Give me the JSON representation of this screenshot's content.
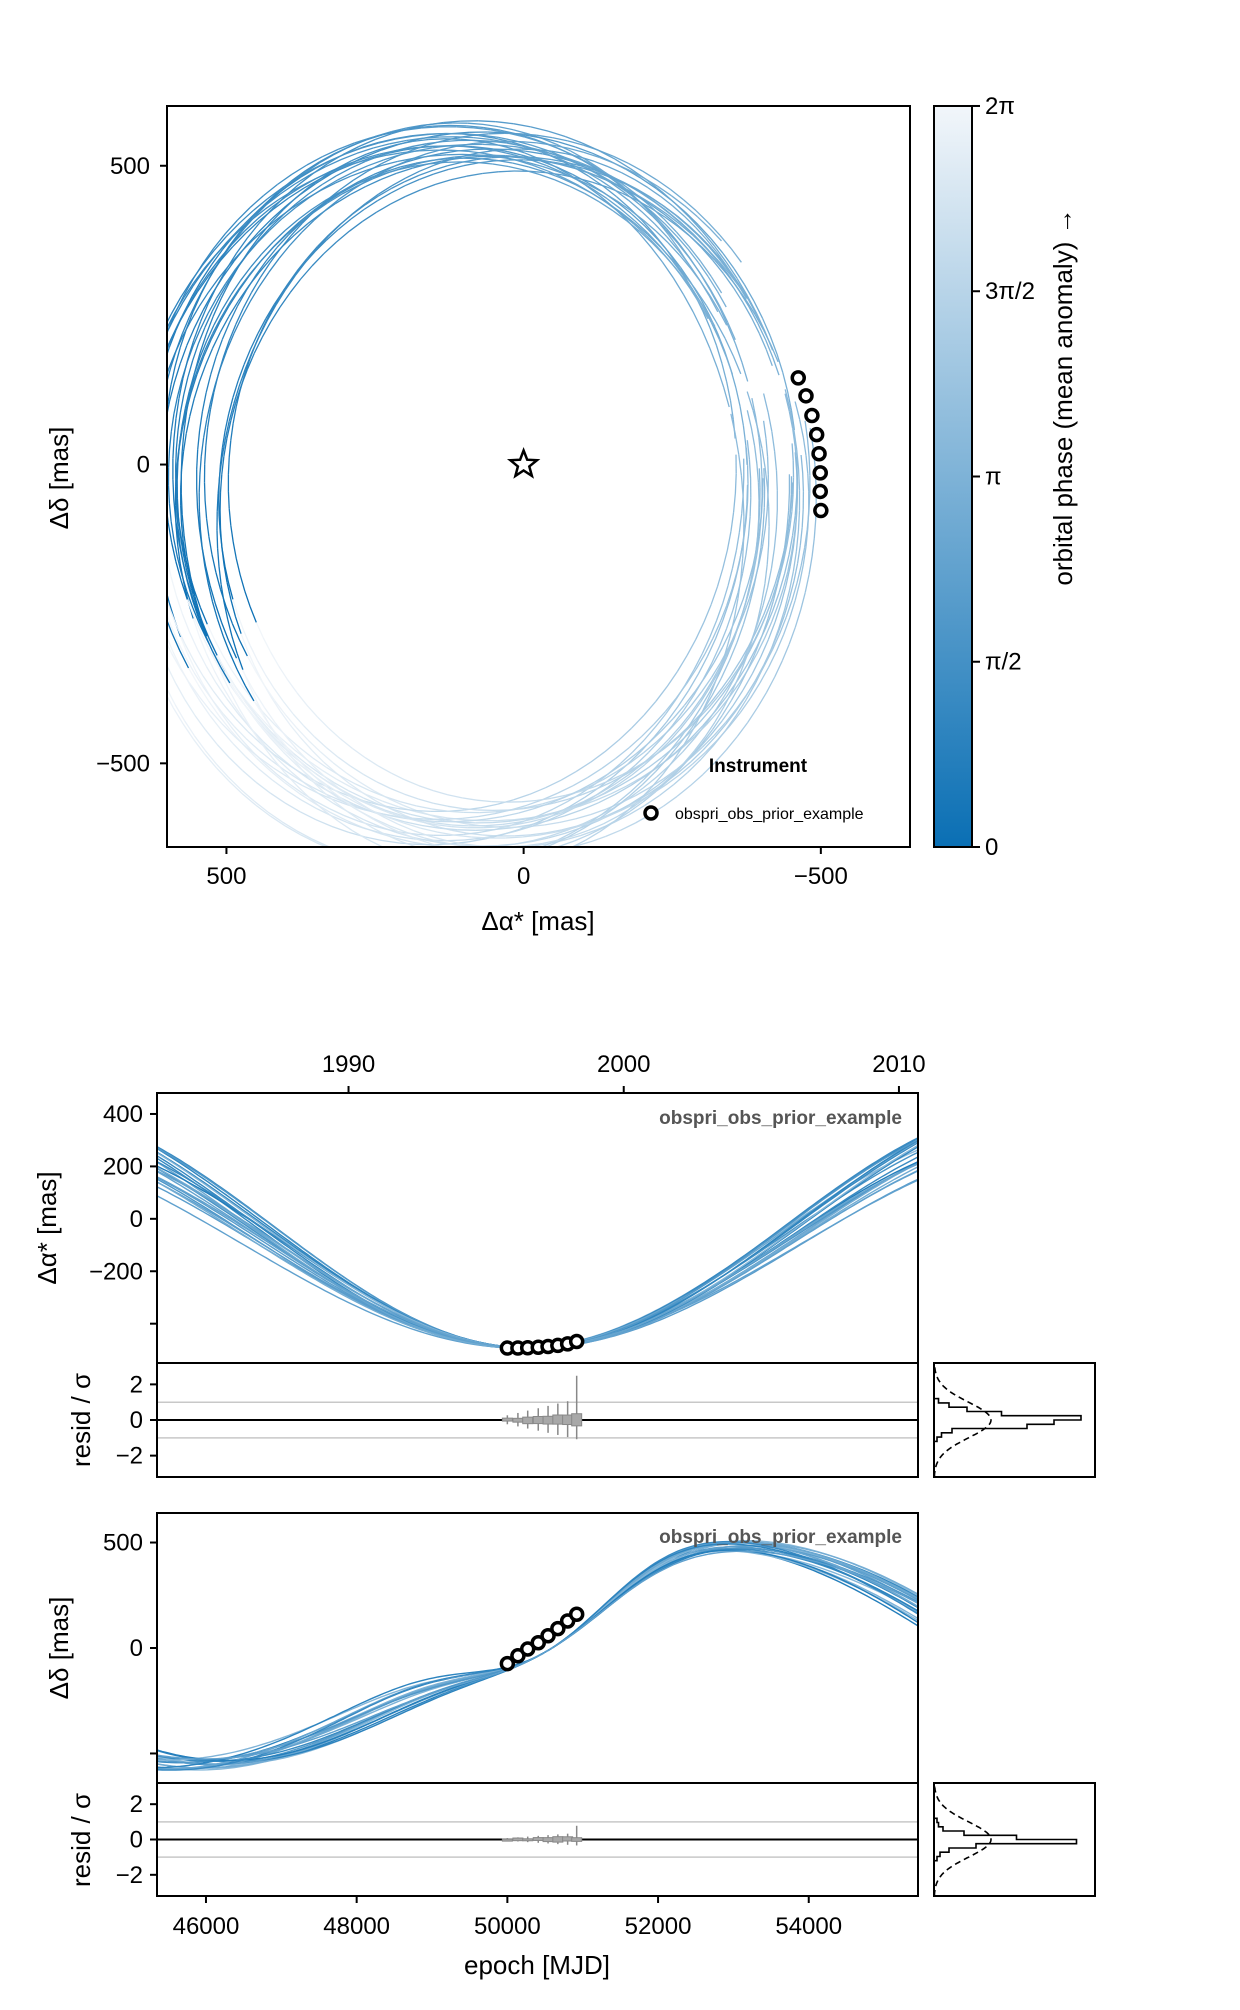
{
  "colors": {
    "orbit_dark": "#0a6fb4",
    "orbit_light": "#f2f6fa",
    "grid_line": "#c8c8c8",
    "box_fill": "#a8a8a8",
    "series_title": "#555555"
  },
  "chart_data": [
    {
      "id": "sky_plane",
      "type": "line",
      "xlabel": "Δα* [mas]",
      "ylabel": "Δδ [mas]",
      "xlim": [
        600,
        -650
      ],
      "ylim": [
        -640,
        600
      ],
      "xticks": [
        500,
        0,
        -500
      ],
      "xtick_labels": [
        "500",
        "0",
        "−500"
      ],
      "yticks": [
        500,
        0,
        -500
      ],
      "ytick_labels": [
        "500",
        "0",
        "−500"
      ],
      "legend": {
        "title": "Instrument",
        "entries": [
          "obspri_obs_prior_example"
        ],
        "position": "bottom-right"
      },
      "star_marker": [
        0,
        0
      ],
      "observations": {
        "x": [
          -462,
          -475,
          -485,
          -493,
          -497,
          -499,
          -499,
          -500
        ],
        "y": [
          145,
          115,
          82,
          50,
          18,
          -14,
          -45,
          -77
        ]
      },
      "colorbar": {
        "label": "orbital phase (mean anomaly) →",
        "range": [
          0,
          6.283
        ],
        "ticks": [
          0,
          1.5708,
          3.1416,
          4.7124,
          6.2832
        ],
        "tick_labels": [
          "0",
          "π/2",
          "π",
          "3π/2",
          "2π"
        ],
        "colors": [
          "#0a6fb4",
          "#f2f6fa"
        ]
      }
    },
    {
      "id": "ra_vs_time",
      "type": "line",
      "ylabel": "Δα* [mas]",
      "top_axis_label": "",
      "top_axis_ticks": [
        1990,
        2000,
        2010
      ],
      "xlim": [
        45350,
        55450
      ],
      "ylim": [
        -550,
        480
      ],
      "yticks": [
        400,
        200,
        0,
        -200,
        -400
      ],
      "ytick_labels": [
        "400",
        "200",
        "0",
        "−200",
        ""
      ],
      "series_label": "obspri_obs_prior_example",
      "observations": {
        "x": [
          50000,
          50140,
          50270,
          50410,
          50540,
          50670,
          50800,
          50920
        ],
        "y": [
          -493,
          -493,
          -492,
          -490,
          -487,
          -483,
          -477,
          -468
        ]
      }
    },
    {
      "id": "ra_residuals",
      "type": "box",
      "ylabel": "resid / σ",
      "ylim": [
        -3.2,
        3.2
      ],
      "yticks": [
        2,
        0,
        -2
      ],
      "ytick_labels": [
        "2",
        "0",
        "−2"
      ],
      "reference_lines": [
        1,
        0,
        -1
      ]
    },
    {
      "id": "dec_vs_time",
      "type": "line",
      "ylabel": "Δδ [mas]",
      "xlim": [
        45350,
        55450
      ],
      "ylim": [
        -640,
        640
      ],
      "yticks": [
        500,
        0,
        -500
      ],
      "ytick_labels": [
        "500",
        "0",
        ""
      ],
      "series_label": "obspri_obs_prior_example",
      "observations": {
        "x": [
          50000,
          50140,
          50270,
          50410,
          50540,
          50670,
          50800,
          50920
        ],
        "y": [
          -74,
          -37,
          -5,
          25,
          58,
          92,
          128,
          160
        ]
      }
    },
    {
      "id": "dec_residuals",
      "type": "box",
      "xlabel": "epoch [MJD]",
      "ylabel": "resid / σ",
      "xlim": [
        45350,
        55450
      ],
      "xticks": [
        46000,
        48000,
        50000,
        52000,
        54000
      ],
      "ylim": [
        -3.2,
        3.2
      ],
      "yticks": [
        2,
        0,
        -2
      ],
      "ytick_labels": [
        "2",
        "0",
        "−2"
      ],
      "reference_lines": [
        1,
        0,
        -1
      ]
    }
  ]
}
